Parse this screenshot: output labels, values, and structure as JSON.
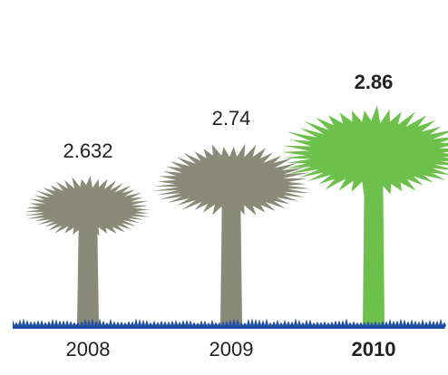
{
  "chart_data": {
    "type": "pictograph",
    "categories": [
      "2008",
      "2009",
      "2010"
    ],
    "values": [
      2.632,
      2.74,
      2.86
    ],
    "colors": [
      "#8a8a78",
      "#8a8a78",
      "#6cc04b"
    ],
    "highlight": 2,
    "highlight_color": "#1d4f9c",
    "ground_color": "#1f4fa3"
  }
}
